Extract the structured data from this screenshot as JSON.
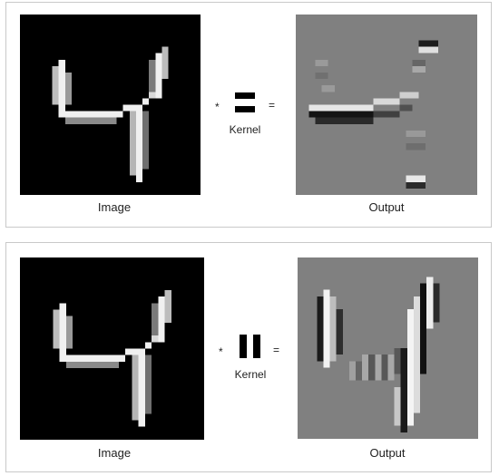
{
  "rows": [
    {
      "image_label": "Image",
      "output_label": "Output",
      "kernel_label": "Kernel",
      "multiply_symbol": "*",
      "equals_symbol": "=",
      "kernel_orientation": "horizontal edge"
    },
    {
      "image_label": "Image",
      "output_label": "Output",
      "kernel_label": "Kernel",
      "multiply_symbol": "*",
      "equals_symbol": "=",
      "kernel_orientation": "vertical edge"
    }
  ],
  "colors": {
    "image_background": "#000000",
    "output_background": "#808080",
    "panel_border": "#c9c9c9"
  }
}
